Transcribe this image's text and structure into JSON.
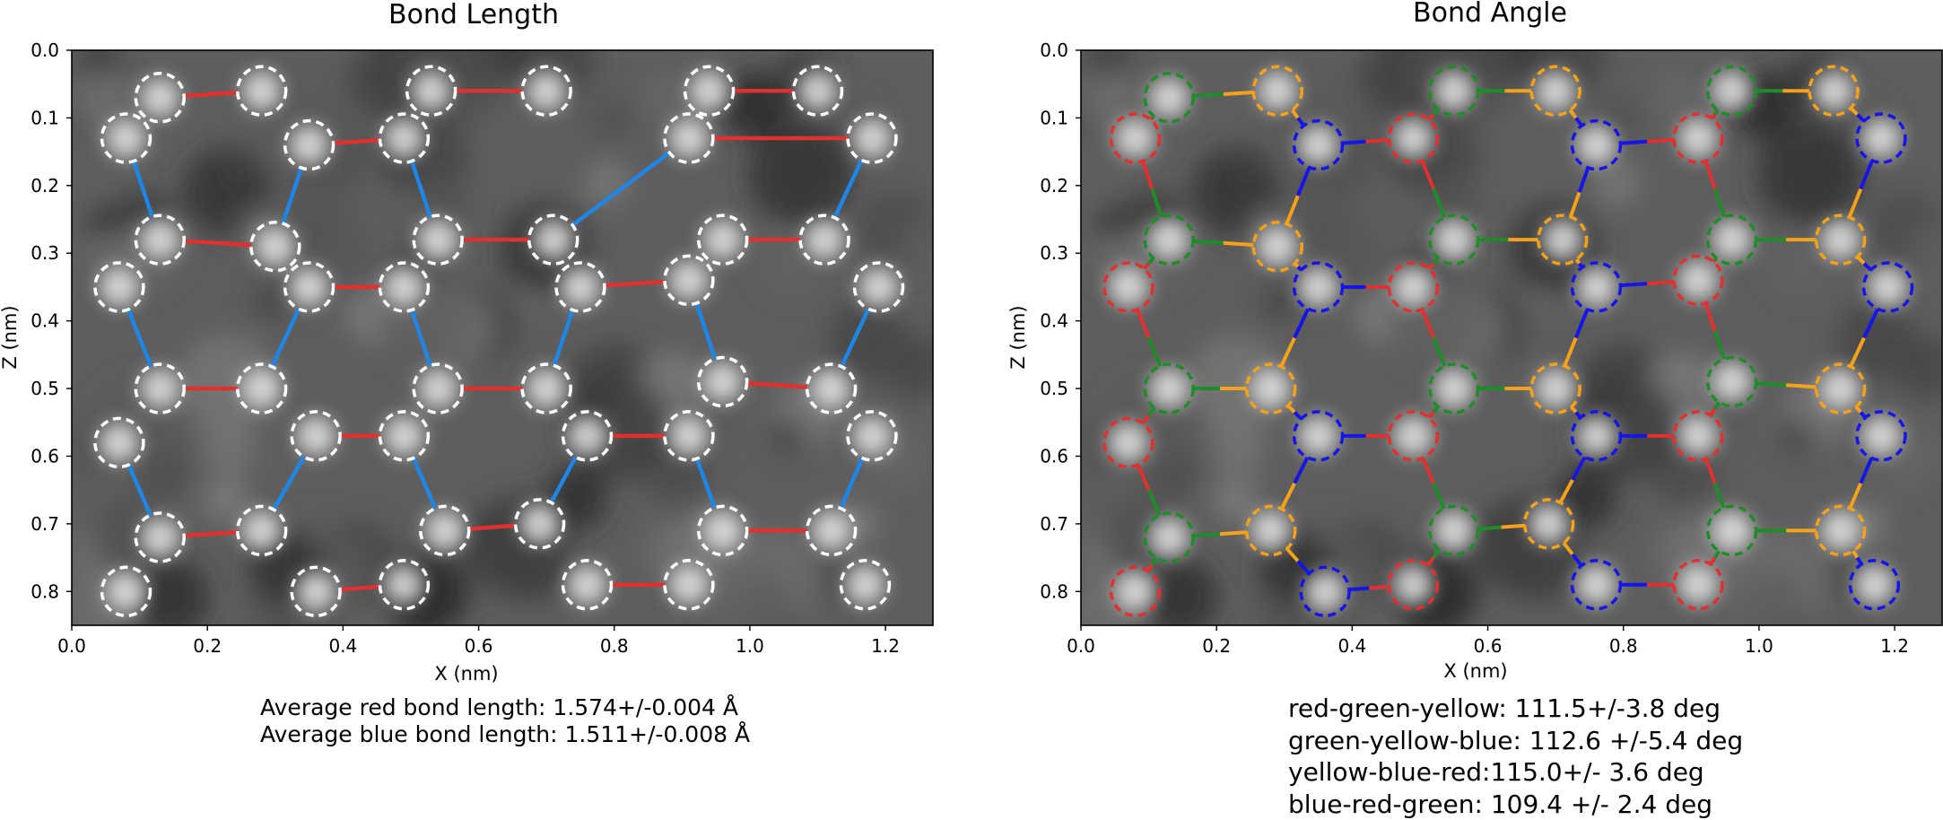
{
  "colors": {
    "red": "#e0302f",
    "blue": "#1f86e6",
    "green": "#1f8c2a",
    "yellow": "#f5a21a",
    "deep_blue": "#1515e8",
    "white": "#ffffff",
    "axis": "#000000",
    "spine": "#000000"
  },
  "chart_data": [
    {
      "type": "scatter",
      "title": "Bond Length",
      "xlabel": "X (nm)",
      "ylabel": "Z (nm)",
      "xlim": [
        0.0,
        1.27
      ],
      "ylim": [
        0.85,
        0.0
      ],
      "xticks": [
        "0.0",
        "0.2",
        "0.4",
        "0.6",
        "0.8",
        "1.0",
        "1.2"
      ],
      "yticks": [
        "0.0",
        "0.1",
        "0.2",
        "0.3",
        "0.4",
        "0.5",
        "0.6",
        "0.7",
        "0.8"
      ],
      "background": "grayscale STEM image",
      "atoms": [
        [
          0.13,
          0.07
        ],
        [
          0.28,
          0.06
        ],
        [
          0.53,
          0.06
        ],
        [
          0.7,
          0.06
        ],
        [
          0.94,
          0.06
        ],
        [
          1.1,
          0.06
        ],
        [
          0.08,
          0.13
        ],
        [
          0.35,
          0.14
        ],
        [
          0.49,
          0.13
        ],
        [
          0.91,
          0.13
        ],
        [
          1.18,
          0.13
        ],
        [
          0.13,
          0.28
        ],
        [
          0.3,
          0.29
        ],
        [
          0.54,
          0.28
        ],
        [
          0.71,
          0.28
        ],
        [
          0.96,
          0.28
        ],
        [
          1.11,
          0.28
        ],
        [
          0.07,
          0.35
        ],
        [
          0.35,
          0.35
        ],
        [
          0.49,
          0.35
        ],
        [
          0.75,
          0.35
        ],
        [
          0.91,
          0.34
        ],
        [
          1.19,
          0.35
        ],
        [
          0.13,
          0.5
        ],
        [
          0.28,
          0.5
        ],
        [
          0.54,
          0.5
        ],
        [
          0.7,
          0.5
        ],
        [
          0.96,
          0.49
        ],
        [
          1.12,
          0.5
        ],
        [
          0.07,
          0.58
        ],
        [
          0.36,
          0.57
        ],
        [
          0.49,
          0.57
        ],
        [
          0.76,
          0.57
        ],
        [
          0.91,
          0.57
        ],
        [
          1.18,
          0.57
        ],
        [
          0.13,
          0.72
        ],
        [
          0.28,
          0.71
        ],
        [
          0.55,
          0.71
        ],
        [
          0.69,
          0.7
        ],
        [
          0.96,
          0.71
        ],
        [
          1.12,
          0.71
        ],
        [
          0.08,
          0.8
        ],
        [
          0.36,
          0.8
        ],
        [
          0.49,
          0.79
        ],
        [
          0.76,
          0.79
        ],
        [
          0.91,
          0.79
        ],
        [
          1.17,
          0.79
        ]
      ],
      "red_bonds": [
        [
          0,
          1
        ],
        [
          2,
          3
        ],
        [
          4,
          5
        ],
        [
          7,
          8
        ],
        [
          9,
          10
        ],
        [
          11,
          12
        ],
        [
          13,
          14
        ],
        [
          15,
          16
        ],
        [
          18,
          19
        ],
        [
          20,
          21
        ],
        [
          23,
          24
        ],
        [
          25,
          26
        ],
        [
          27,
          28
        ],
        [
          30,
          31
        ],
        [
          32,
          33
        ],
        [
          35,
          36
        ],
        [
          37,
          38
        ],
        [
          39,
          40
        ],
        [
          42,
          43
        ],
        [
          44,
          45
        ]
      ],
      "blue_bonds": [
        [
          6,
          11
        ],
        [
          7,
          12
        ],
        [
          8,
          13
        ],
        [
          9,
          14
        ],
        [
          10,
          16
        ],
        [
          17,
          23
        ],
        [
          18,
          24
        ],
        [
          19,
          25
        ],
        [
          20,
          26
        ],
        [
          21,
          27
        ],
        [
          22,
          28
        ],
        [
          29,
          35
        ],
        [
          30,
          36
        ],
        [
          31,
          37
        ],
        [
          32,
          38
        ],
        [
          33,
          39
        ],
        [
          34,
          40
        ]
      ],
      "caption": [
        "Average red bond length:  1.574+/-0.004 Å",
        "Average blue bond length: 1.511+/-0.008 Å"
      ]
    },
    {
      "type": "scatter",
      "title": "Bond Angle",
      "xlabel": "X (nm)",
      "ylabel": "Z (nm)",
      "xlim": [
        0.0,
        1.27
      ],
      "ylim": [
        0.85,
        0.0
      ],
      "xticks": [
        "0.0",
        "0.2",
        "0.4",
        "0.6",
        "0.8",
        "1.0",
        "1.2"
      ],
      "yticks": [
        "0.0",
        "0.1",
        "0.2",
        "0.3",
        "0.4",
        "0.5",
        "0.6",
        "0.7",
        "0.8"
      ],
      "background": "grayscale STEM image",
      "atoms": {
        "green": [
          [
            0.13,
            0.07
          ],
          [
            0.55,
            0.06
          ],
          [
            0.96,
            0.06
          ],
          [
            0.13,
            0.28
          ],
          [
            0.55,
            0.28
          ],
          [
            0.96,
            0.28
          ],
          [
            0.13,
            0.5
          ],
          [
            0.55,
            0.5
          ],
          [
            0.96,
            0.49
          ],
          [
            0.13,
            0.72
          ],
          [
            0.55,
            0.71
          ],
          [
            0.96,
            0.71
          ]
        ],
        "yellow": [
          [
            0.29,
            0.06
          ],
          [
            0.7,
            0.06
          ],
          [
            1.11,
            0.06
          ],
          [
            0.29,
            0.29
          ],
          [
            0.71,
            0.28
          ],
          [
            1.12,
            0.28
          ],
          [
            0.28,
            0.5
          ],
          [
            0.7,
            0.5
          ],
          [
            1.12,
            0.5
          ],
          [
            0.28,
            0.71
          ],
          [
            0.69,
            0.7
          ],
          [
            1.12,
            0.71
          ]
        ],
        "blue": [
          [
            0.35,
            0.14
          ],
          [
            0.76,
            0.14
          ],
          [
            1.18,
            0.13
          ],
          [
            0.35,
            0.35
          ],
          [
            0.76,
            0.35
          ],
          [
            1.19,
            0.35
          ],
          [
            0.35,
            0.57
          ],
          [
            0.76,
            0.57
          ],
          [
            1.18,
            0.57
          ],
          [
            0.36,
            0.8
          ],
          [
            0.76,
            0.79
          ],
          [
            1.17,
            0.79
          ]
        ],
        "red": [
          [
            0.08,
            0.13
          ],
          [
            0.49,
            0.13
          ],
          [
            0.91,
            0.13
          ],
          [
            0.07,
            0.35
          ],
          [
            0.49,
            0.35
          ],
          [
            0.91,
            0.34
          ],
          [
            0.07,
            0.58
          ],
          [
            0.49,
            0.57
          ],
          [
            0.91,
            0.57
          ],
          [
            0.08,
            0.8
          ],
          [
            0.49,
            0.79
          ],
          [
            0.91,
            0.79
          ]
        ]
      },
      "caption": [
        "red-green-yellow: 111.5+/-3.8 deg",
        "green-yellow-blue: 112.6 +/-5.4 deg",
        "yellow-blue-red:115.0+/- 3.6 deg",
        "blue-red-green: 109.4 +/- 2.4 deg"
      ]
    }
  ]
}
